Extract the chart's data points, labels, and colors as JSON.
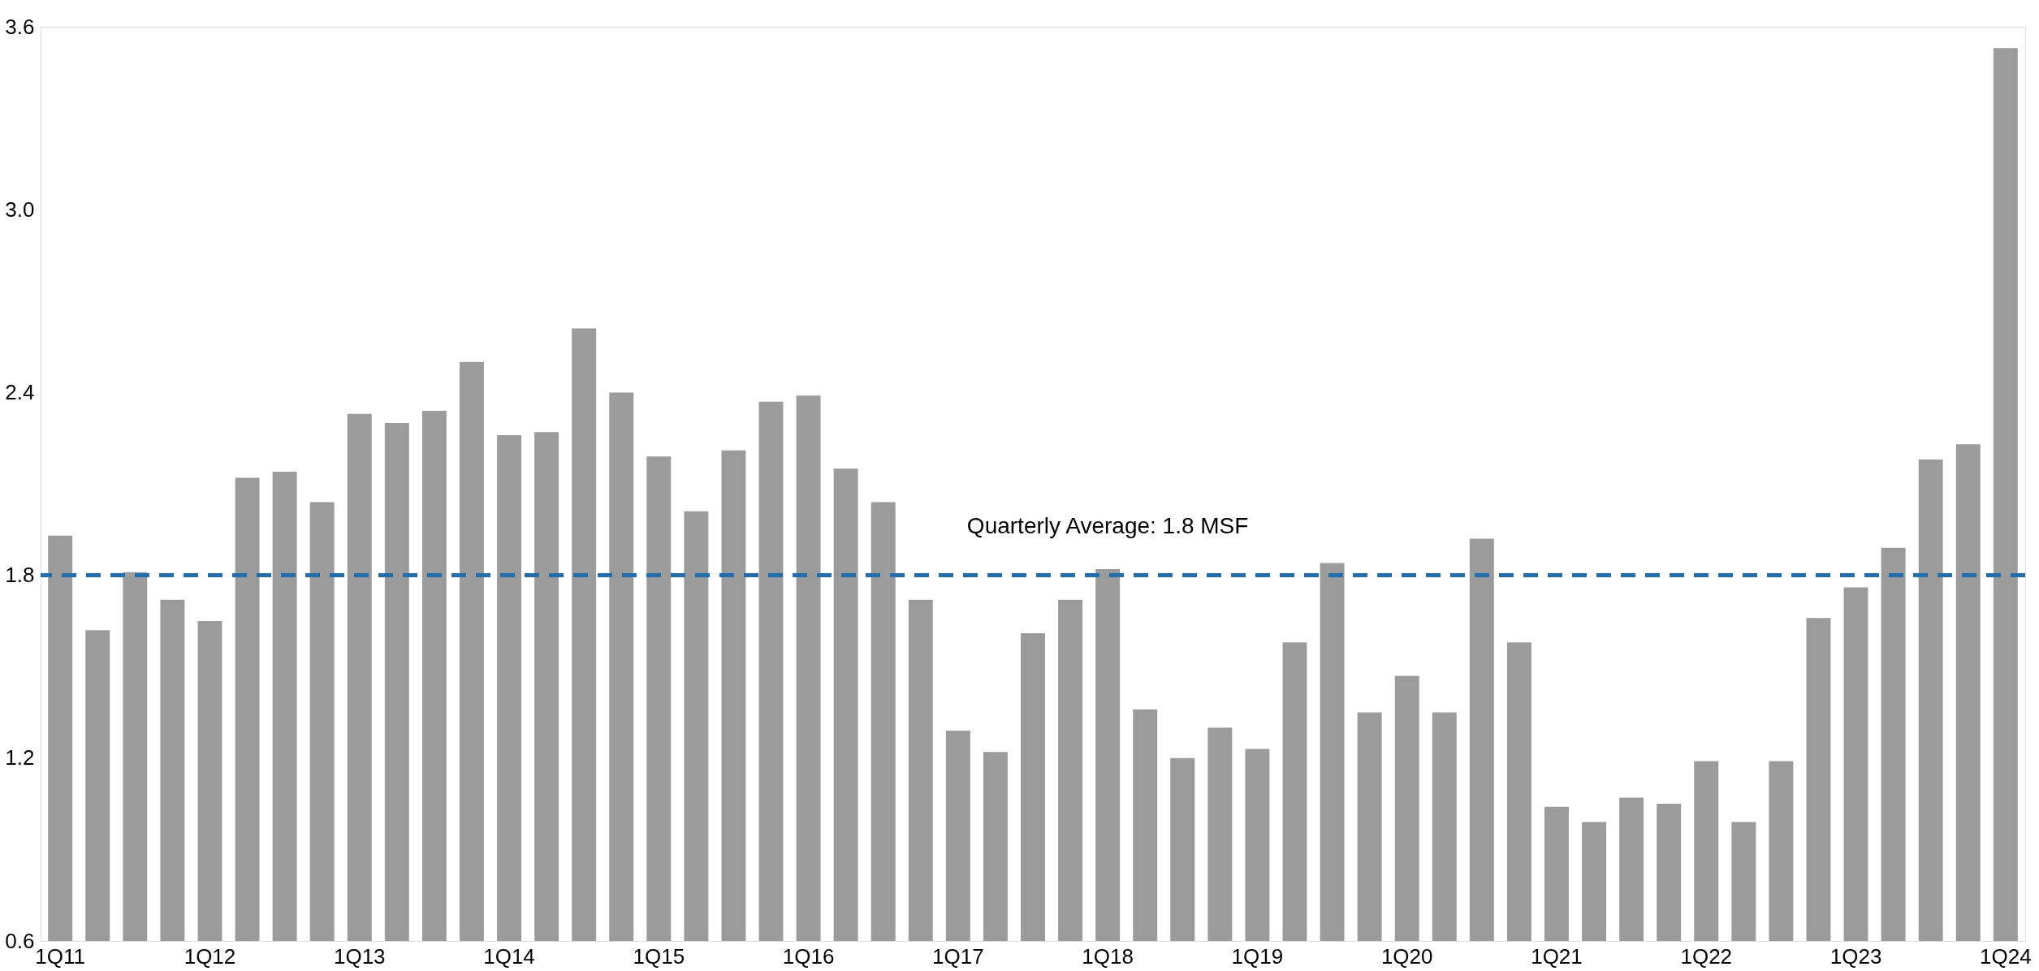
{
  "chart_data": {
    "type": "bar",
    "categories": [
      "1Q11",
      null,
      null,
      null,
      "1Q12",
      null,
      null,
      null,
      "1Q13",
      null,
      null,
      null,
      "1Q14",
      null,
      null,
      null,
      "1Q15",
      null,
      null,
      null,
      "1Q16",
      null,
      null,
      null,
      "1Q17",
      null,
      null,
      null,
      "1Q18",
      null,
      null,
      null,
      "1Q19",
      null,
      null,
      null,
      "1Q20",
      null,
      null,
      null,
      "1Q21",
      null,
      null,
      null,
      "1Q22",
      null,
      null,
      null,
      "1Q23",
      null,
      null,
      null,
      "1Q24"
    ],
    "values": [
      1.93,
      1.62,
      1.81,
      1.72,
      1.65,
      2.12,
      2.14,
      2.04,
      2.33,
      2.3,
      2.34,
      2.5,
      2.26,
      2.27,
      2.61,
      2.4,
      2.19,
      2.01,
      2.21,
      2.37,
      2.39,
      2.15,
      2.04,
      1.72,
      1.29,
      1.22,
      1.61,
      1.72,
      1.82,
      1.36,
      1.2,
      1.3,
      1.23,
      1.58,
      1.84,
      1.35,
      1.47,
      1.35,
      1.92,
      1.58,
      1.04,
      0.99,
      1.07,
      1.05,
      1.19,
      0.99,
      1.19,
      1.66,
      1.76,
      1.89,
      2.18,
      2.23,
      3.53
    ],
    "color": "#9b9b9b",
    "ylim": [
      0.6,
      3.6
    ],
    "yticks": [
      0.6,
      1.2,
      1.8,
      2.4,
      {
        "value": 3,
        "label": "3.0"
      },
      3.6
    ],
    "ref_lines": [
      {
        "axis": "y",
        "value": 1.8,
        "label": "Quarterly Average: 1.8 MSF",
        "color": "#1f6fb0",
        "line_style": "dashed"
      }
    ],
    "grid": false
  }
}
